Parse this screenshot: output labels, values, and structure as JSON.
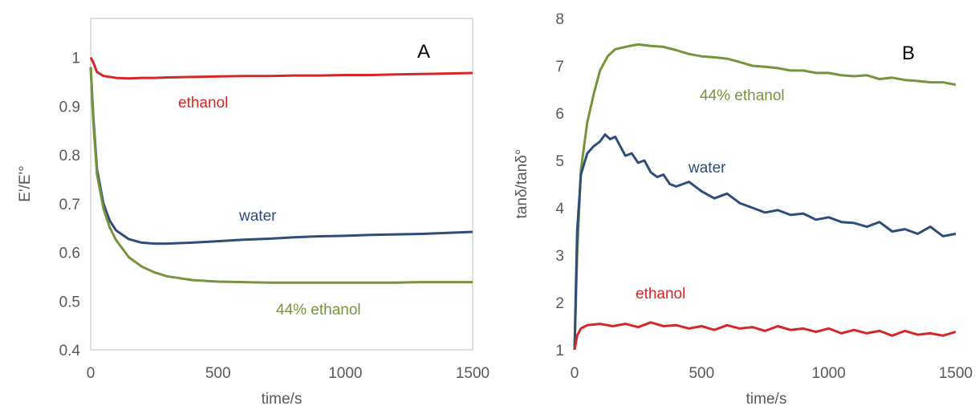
{
  "chart_data": [
    {
      "type": "line",
      "panel_label": "A",
      "xlabel": "time/s",
      "ylabel": "E'/E'°",
      "xlim": [
        0,
        1500
      ],
      "ylim": [
        0.4,
        1.08
      ],
      "x_ticks": [
        "0",
        "500",
        "1000",
        "1500"
      ],
      "y_ticks": [
        "0.4",
        "0.5",
        "0.6",
        "0.7",
        "0.8",
        "0.9",
        "1"
      ],
      "x_tick_values": [
        0,
        500,
        1000,
        1500
      ],
      "y_tick_values": [
        0.4,
        0.5,
        0.6,
        0.7,
        0.8,
        0.9,
        1.0
      ],
      "grid": false,
      "legend": "none",
      "series": [
        {
          "name": "ethanol",
          "color": "#d62728",
          "x": [
            0,
            10,
            25,
            50,
            100,
            150,
            200,
            250,
            300,
            400,
            500,
            600,
            700,
            800,
            900,
            1000,
            1100,
            1200,
            1300,
            1400,
            1500
          ],
          "y": [
            1.0,
            0.99,
            0.97,
            0.962,
            0.958,
            0.957,
            0.958,
            0.958,
            0.959,
            0.96,
            0.961,
            0.962,
            0.962,
            0.963,
            0.963,
            0.964,
            0.964,
            0.965,
            0.966,
            0.967,
            0.968
          ]
        },
        {
          "name": "water",
          "color": "#2e4d7b",
          "x": [
            0,
            10,
            25,
            50,
            75,
            100,
            150,
            200,
            250,
            300,
            400,
            500,
            600,
            700,
            800,
            900,
            1000,
            1100,
            1200,
            1300,
            1400,
            1500
          ],
          "y": [
            0.98,
            0.88,
            0.77,
            0.7,
            0.665,
            0.645,
            0.627,
            0.62,
            0.618,
            0.618,
            0.62,
            0.623,
            0.626,
            0.628,
            0.631,
            0.633,
            0.634,
            0.636,
            0.637,
            0.638,
            0.64,
            0.642
          ]
        },
        {
          "name": "44% ethanol",
          "color": "#77933c",
          "x": [
            0,
            10,
            25,
            50,
            75,
            100,
            150,
            200,
            250,
            300,
            400,
            500,
            600,
            700,
            800,
            900,
            1000,
            1100,
            1200,
            1300,
            1400,
            1500
          ],
          "y": [
            0.98,
            0.87,
            0.76,
            0.69,
            0.651,
            0.625,
            0.59,
            0.571,
            0.559,
            0.551,
            0.543,
            0.54,
            0.539,
            0.538,
            0.538,
            0.538,
            0.538,
            0.538,
            0.538,
            0.539,
            0.539,
            0.539
          ]
        }
      ],
      "annotations": [
        {
          "text": "ethanol",
          "color": "#d62728"
        },
        {
          "text": "water",
          "color": "#2e4d7b"
        },
        {
          "text": "44% ethanol",
          "color": "#77933c"
        }
      ]
    },
    {
      "type": "line",
      "panel_label": "B",
      "xlabel": "time/s",
      "ylabel": "tanδ/tanδ°",
      "xlim": [
        0,
        1500
      ],
      "ylim": [
        1,
        8
      ],
      "x_ticks": [
        "0",
        "500",
        "1000",
        "1500"
      ],
      "y_ticks": [
        "1",
        "2",
        "3",
        "4",
        "5",
        "6",
        "7",
        "8"
      ],
      "x_tick_values": [
        0,
        500,
        1000,
        1500
      ],
      "y_tick_values": [
        1,
        2,
        3,
        4,
        5,
        6,
        7,
        8
      ],
      "grid": false,
      "legend": "none",
      "series": [
        {
          "name": "44% ethanol",
          "color": "#77933c",
          "x": [
            0,
            10,
            25,
            50,
            75,
            100,
            130,
            160,
            200,
            250,
            300,
            350,
            400,
            450,
            500,
            550,
            600,
            650,
            700,
            750,
            800,
            850,
            900,
            950,
            1000,
            1050,
            1100,
            1150,
            1200,
            1250,
            1300,
            1350,
            1400,
            1450,
            1500
          ],
          "y": [
            1.0,
            3.0,
            4.8,
            5.8,
            6.4,
            6.9,
            7.2,
            7.35,
            7.4,
            7.45,
            7.42,
            7.4,
            7.33,
            7.25,
            7.2,
            7.18,
            7.15,
            7.08,
            7.0,
            6.98,
            6.95,
            6.9,
            6.9,
            6.85,
            6.85,
            6.8,
            6.78,
            6.8,
            6.72,
            6.75,
            6.7,
            6.68,
            6.65,
            6.65,
            6.6
          ]
        },
        {
          "name": "water",
          "color": "#2e4d7b",
          "x": [
            0,
            10,
            25,
            50,
            75,
            100,
            120,
            140,
            160,
            180,
            200,
            225,
            250,
            275,
            300,
            325,
            350,
            375,
            400,
            450,
            500,
            550,
            600,
            650,
            700,
            750,
            800,
            850,
            900,
            950,
            1000,
            1050,
            1100,
            1150,
            1200,
            1250,
            1300,
            1350,
            1400,
            1450,
            1500
          ],
          "y": [
            1.0,
            3.5,
            4.7,
            5.15,
            5.3,
            5.4,
            5.55,
            5.45,
            5.5,
            5.3,
            5.1,
            5.15,
            4.95,
            5.0,
            4.75,
            4.65,
            4.7,
            4.5,
            4.45,
            4.55,
            4.35,
            4.2,
            4.3,
            4.1,
            4.0,
            3.9,
            3.95,
            3.85,
            3.88,
            3.75,
            3.8,
            3.7,
            3.68,
            3.6,
            3.7,
            3.5,
            3.55,
            3.45,
            3.6,
            3.4,
            3.45
          ]
        },
        {
          "name": "ethanol",
          "color": "#d62728",
          "x": [
            0,
            10,
            25,
            50,
            100,
            150,
            200,
            250,
            300,
            350,
            400,
            450,
            500,
            550,
            600,
            650,
            700,
            750,
            800,
            850,
            900,
            950,
            1000,
            1050,
            1100,
            1150,
            1200,
            1250,
            1300,
            1350,
            1400,
            1450,
            1500
          ],
          "y": [
            1.0,
            1.3,
            1.45,
            1.52,
            1.55,
            1.5,
            1.55,
            1.48,
            1.58,
            1.5,
            1.52,
            1.45,
            1.5,
            1.42,
            1.52,
            1.45,
            1.48,
            1.4,
            1.5,
            1.42,
            1.45,
            1.38,
            1.45,
            1.35,
            1.42,
            1.35,
            1.4,
            1.3,
            1.4,
            1.32,
            1.35,
            1.3,
            1.38
          ]
        }
      ],
      "annotations": [
        {
          "text": "44% ethanol",
          "color": "#77933c"
        },
        {
          "text": "water",
          "color": "#2e4d7b"
        },
        {
          "text": "ethanol",
          "color": "#d62728"
        }
      ]
    }
  ]
}
